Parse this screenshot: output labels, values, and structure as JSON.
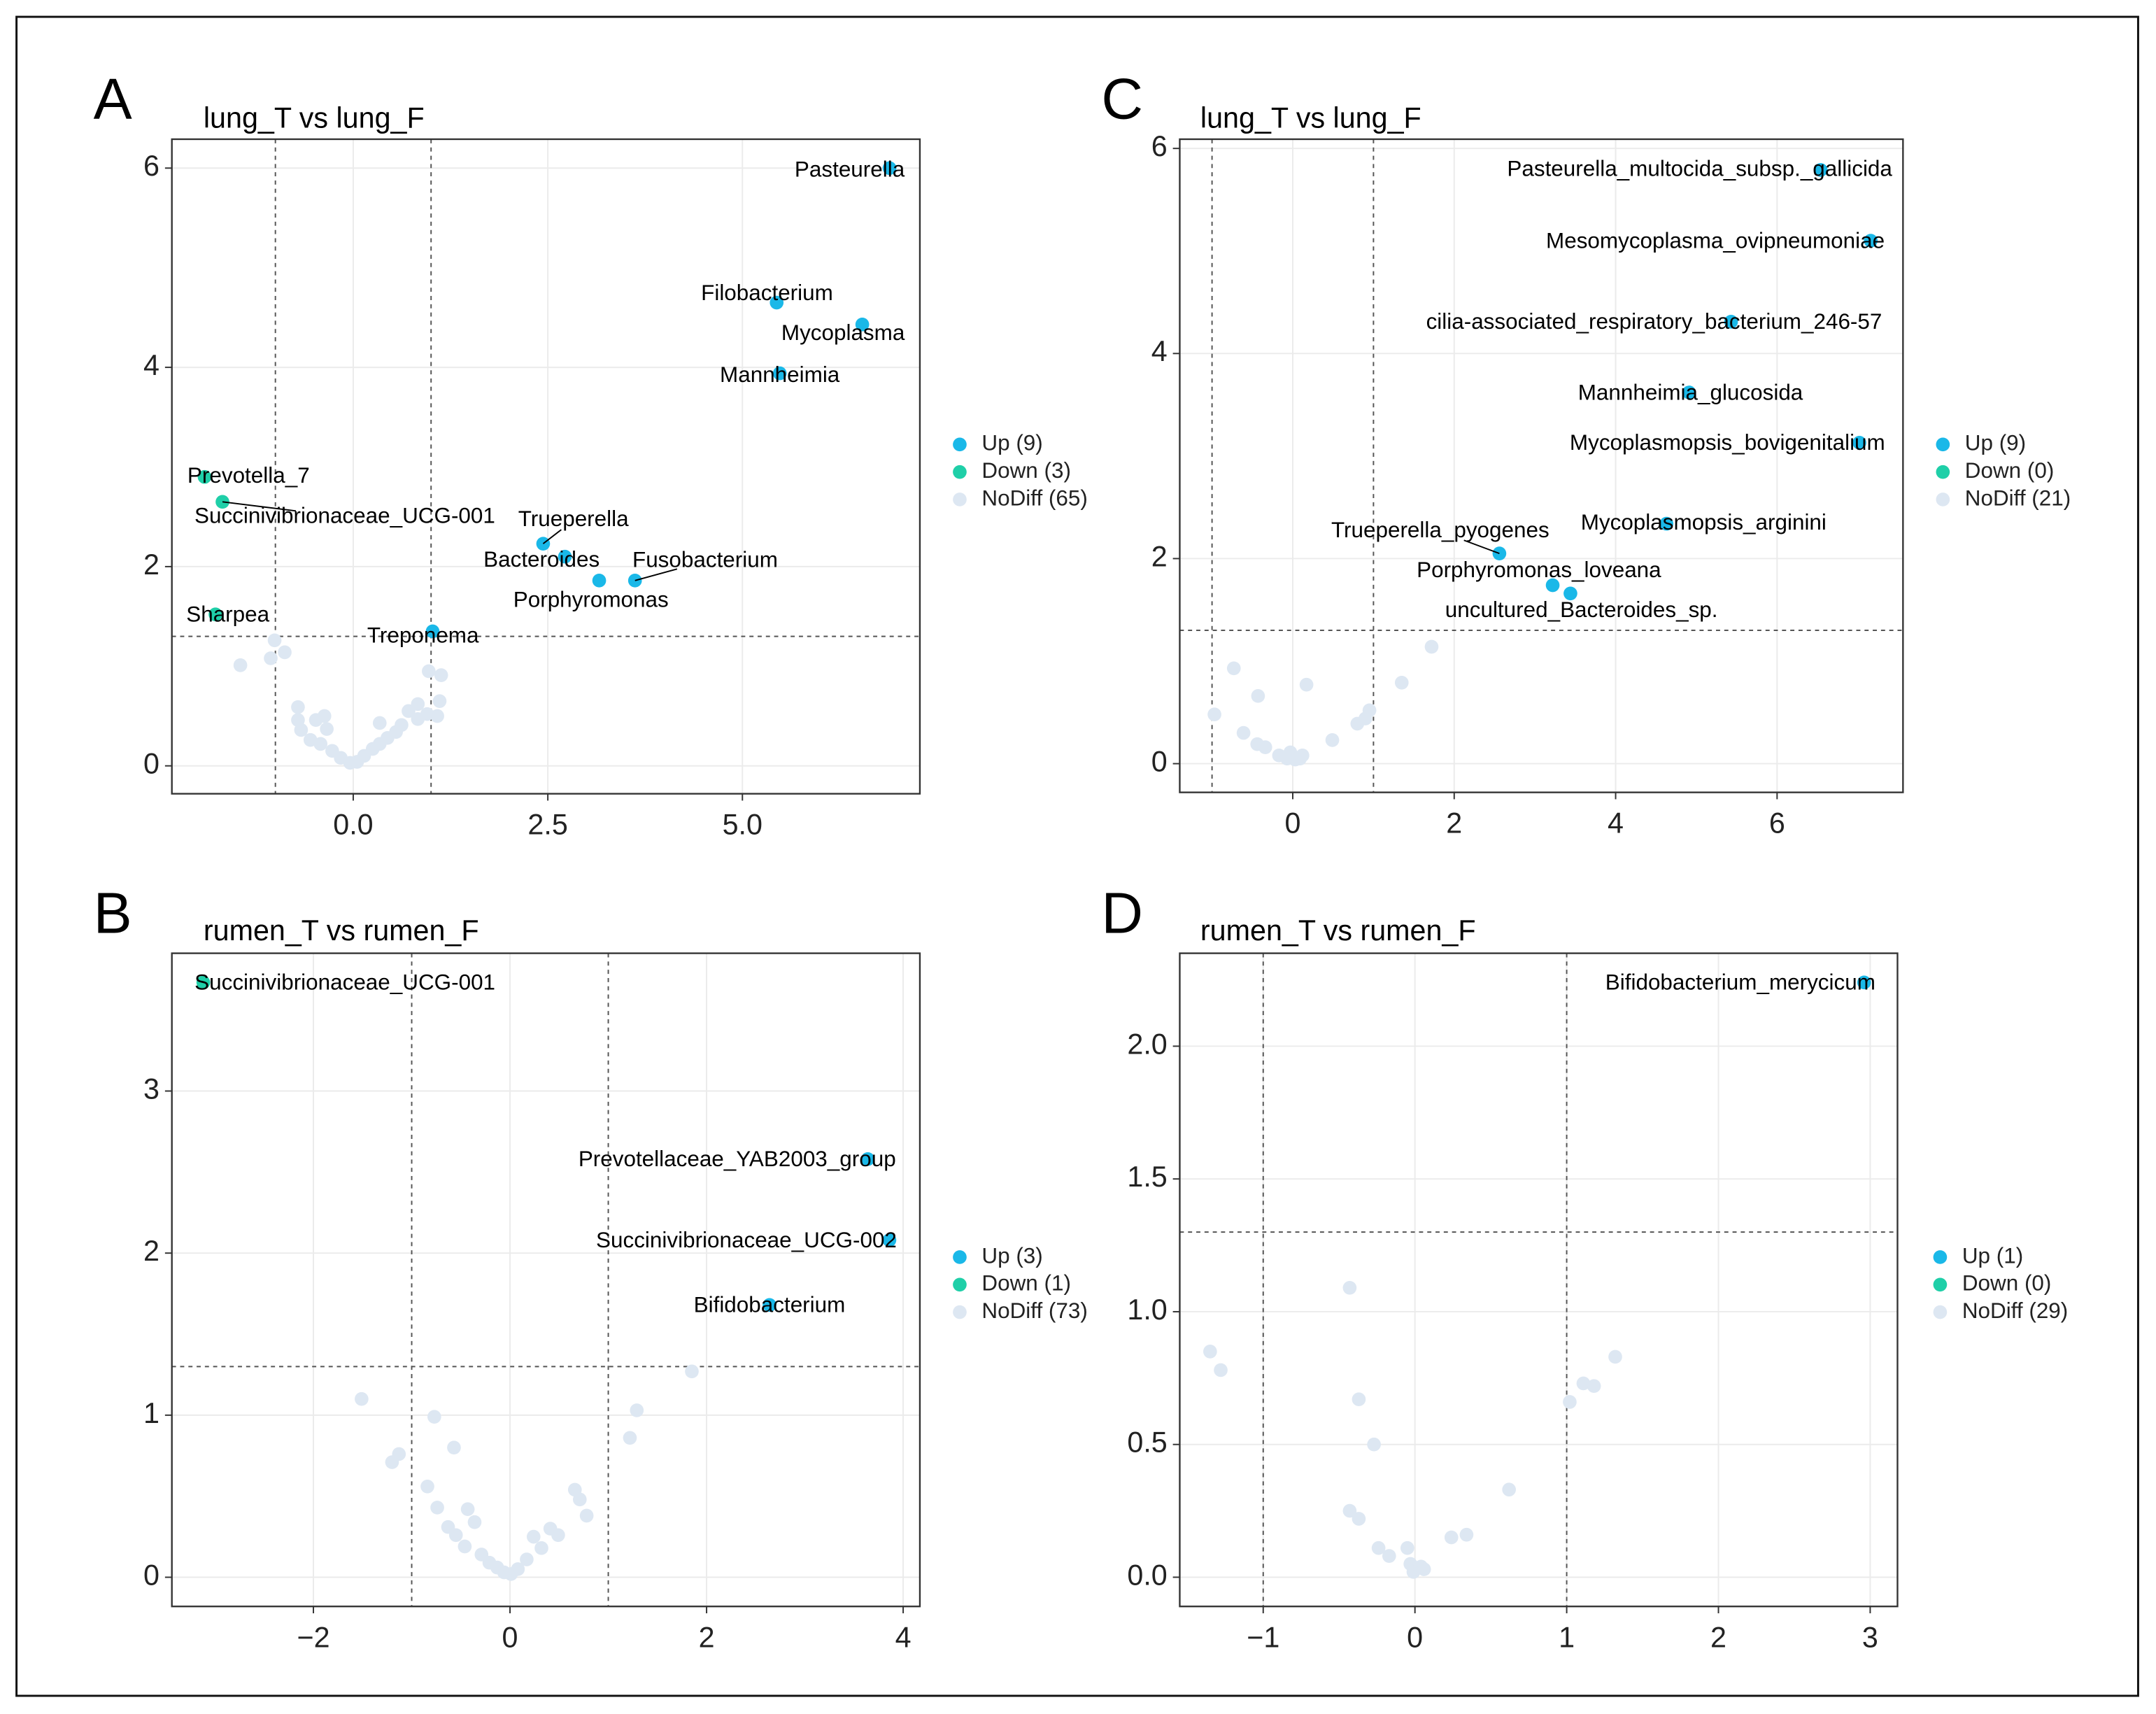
{
  "chart_data": [
    {
      "type": "scatter",
      "panel": "A",
      "title": "lung_T vs lung_F",
      "xlim": [
        -2.33,
        7.28
      ],
      "ylim": [
        -0.28,
        6.29
      ],
      "xticks": [
        {
          "value": 0,
          "label": "0.0"
        },
        2.5,
        {
          "value": 5,
          "label": "5.0"
        }
      ],
      "yticks": [
        0,
        2,
        4,
        6
      ],
      "grid": true,
      "thresholds": {
        "x": [
          -1,
          1
        ],
        "y": 1.3
      },
      "series": [
        {
          "name": "Up (9)",
          "color": "#1ab8e8",
          "x": [
            6.89,
            5.44,
            6.54,
            5.48,
            2.44,
            2.72,
            3.62,
            3.16,
            1.02
          ],
          "y": [
            6.0,
            4.65,
            4.43,
            3.94,
            2.23,
            2.1,
            1.86,
            1.86,
            1.35
          ],
          "labels": [
            "Pasteurella",
            "Filobacterium",
            "Mycoplasma",
            "Mannheimia",
            "Trueperella",
            "Bacteroides",
            "Fusobacterium",
            "Porphyromonas",
            "Treponema"
          ]
        },
        {
          "name": "Down (3)",
          "color": "#1fcfa8",
          "x": [
            -1.91,
            -1.68,
            -1.77
          ],
          "y": [
            2.9,
            2.65,
            1.52
          ],
          "labels": [
            "Prevotella_7",
            "Succinivibrionaceae_UCG-001",
            "Sharpea"
          ]
        },
        {
          "name": "NoDiff (65)",
          "color": "#dde7f2",
          "x": [
            -1.45,
            -1.06,
            -0.88,
            -1.01,
            -0.71,
            -0.71,
            -0.67,
            -0.48,
            -0.37,
            -0.34,
            -0.55,
            -0.42,
            -0.27,
            -0.16,
            -0.04,
            0.05,
            0.14,
            0.25,
            0.34,
            0.44,
            0.55,
            0.62,
            0.34,
            0.71,
            0.83,
            0.83,
            0.95,
            1.08,
            0.97,
            1.11,
            1.13
          ],
          "y": [
            1.01,
            1.08,
            1.14,
            1.26,
            0.59,
            0.46,
            0.36,
            0.46,
            0.5,
            0.37,
            0.26,
            0.22,
            0.15,
            0.08,
            0.03,
            0.04,
            0.1,
            0.17,
            0.22,
            0.28,
            0.34,
            0.41,
            0.43,
            0.55,
            0.47,
            0.62,
            0.52,
            0.5,
            0.95,
            0.65,
            0.91
          ]
        }
      ]
    },
    {
      "type": "scatter",
      "panel": "B",
      "title": "rumen_T vs rumen_F",
      "xlim": [
        -3.44,
        4.17
      ],
      "ylim": [
        -0.18,
        3.85
      ],
      "xticks": [
        {
          "value": -2,
          "label": "−2"
        },
        0,
        2,
        4
      ],
      "yticks": [
        0,
        1,
        2,
        3
      ],
      "grid": true,
      "thresholds": {
        "x": [
          -1,
          1
        ],
        "y": 1.3
      },
      "series": [
        {
          "name": "Up (3)",
          "color": "#1ab8e8",
          "x": [
            3.64,
            3.86,
            2.64
          ],
          "y": [
            2.58,
            2.08,
            1.68
          ],
          "labels": [
            "Prevotellaceae_YAB2003_group",
            "Succinivibrionaceae_UCG-002",
            "Bifidobacterium"
          ]
        },
        {
          "name": "Down (1)",
          "color": "#1fcfa8",
          "x": [
            -3.12
          ],
          "y": [
            3.67
          ],
          "labels": [
            "Succinivibrionaceae_UCG-001"
          ]
        },
        {
          "name": "NoDiff (73)",
          "color": "#dde7f2",
          "x": [
            -1.51,
            -1.2,
            -1.13,
            -0.77,
            -0.57,
            -0.84,
            -0.74,
            -0.63,
            -0.55,
            -0.43,
            -0.36,
            -0.46,
            -0.29,
            -0.21,
            -0.13,
            -0.06,
            0.01,
            0.08,
            0.17,
            0.24,
            0.32,
            0.41,
            0.49,
            0.66,
            0.71,
            0.78,
            1.22,
            1.29,
            1.85
          ],
          "y": [
            1.1,
            0.71,
            0.76,
            0.99,
            0.8,
            0.56,
            0.43,
            0.31,
            0.26,
            0.42,
            0.34,
            0.19,
            0.14,
            0.09,
            0.06,
            0.03,
            0.02,
            0.05,
            0.11,
            0.25,
            0.18,
            0.3,
            0.26,
            0.54,
            0.48,
            0.38,
            0.86,
            1.03,
            1.27
          ]
        }
      ]
    },
    {
      "type": "scatter",
      "panel": "C",
      "title": "lung_T vs lung_F",
      "xlim": [
        -1.4,
        7.56
      ],
      "ylim": [
        -0.28,
        6.09
      ],
      "xticks": [
        0,
        2,
        4,
        6
      ],
      "yticks": [
        0,
        2,
        4,
        6
      ],
      "grid": true,
      "thresholds": {
        "x": [
          -1,
          1
        ],
        "y": 1.3
      },
      "series": [
        {
          "name": "Up (9)",
          "color": "#1ab8e8",
          "x": [
            6.54,
            7.16,
            5.43,
            4.91,
            7.02,
            4.63,
            2.56,
            3.22,
            3.44
          ],
          "y": [
            5.79,
            5.1,
            4.31,
            3.62,
            3.13,
            2.34,
            2.05,
            1.74,
            1.66
          ],
          "labels": [
            "Pasteurella_multocida_subsp._gallicida",
            "Mesomycoplasma_ovipneumoniae",
            "cilia-associated_respiratory_bacterium_246-57",
            "Mannheimia_glucosida",
            "Mycoplasmopsis_bovigenitalium",
            "Mycoplasmopsis_arginini",
            "Trueperella_pyogenes",
            "Porphyromonas_loveana",
            "uncultured_Bacteroides_sp."
          ]
        },
        {
          "name": "Down (0)",
          "color": "#1fcfa8",
          "x": [],
          "y": [],
          "labels": []
        },
        {
          "name": "NoDiff (21)",
          "color": "#dde7f2",
          "x": [
            -0.97,
            -0.73,
            -0.61,
            -0.43,
            -0.44,
            -0.34,
            -0.17,
            -0.07,
            0.03,
            0.12,
            0.17,
            0.49,
            0.8,
            0.9,
            0.95,
            1.35,
            1.72,
            0.09,
            -0.03
          ],
          "y": [
            0.48,
            0.93,
            0.3,
            0.66,
            0.19,
            0.16,
            0.08,
            0.05,
            0.04,
            0.08,
            0.77,
            0.23,
            0.39,
            0.44,
            0.52,
            0.79,
            1.14,
            0.05,
            0.11
          ]
        }
      ]
    },
    {
      "type": "scatter",
      "panel": "D",
      "title": "rumen_T vs rumen_F",
      "xlim": [
        -1.55,
        3.18
      ],
      "ylim": [
        -0.11,
        2.35
      ],
      "xticks": [
        {
          "value": -1,
          "label": "−1"
        },
        0,
        1,
        2,
        3
      ],
      "yticks": [
        {
          "value": 0,
          "label": "0.0"
        },
        0.5,
        {
          "value": 1,
          "label": "1.0"
        },
        1.5,
        {
          "value": 2,
          "label": "2.0"
        }
      ],
      "grid": true,
      "thresholds": {
        "x": [
          -1,
          1
        ],
        "y": 1.3
      },
      "series": [
        {
          "name": "Up (1)",
          "color": "#1ab8e8",
          "x": [
            2.96
          ],
          "y": [
            2.24
          ],
          "labels": [
            "Bifidobacterium_merycicum"
          ]
        },
        {
          "name": "Down (0)",
          "color": "#1fcfa8",
          "x": [],
          "y": [],
          "labels": []
        },
        {
          "name": "NoDiff (29)",
          "color": "#dde7f2",
          "x": [
            -1.35,
            -1.28,
            -0.43,
            -0.37,
            -0.27,
            -0.43,
            -0.37,
            -0.24,
            -0.17,
            -0.05,
            -0.03,
            -0.01,
            0.04,
            0.06,
            0.24,
            0.34,
            0.62,
            1.02,
            1.11,
            1.18,
            1.32
          ],
          "y": [
            0.85,
            0.78,
            1.09,
            0.67,
            0.5,
            0.25,
            0.22,
            0.11,
            0.08,
            0.11,
            0.05,
            0.02,
            0.04,
            0.03,
            0.15,
            0.16,
            0.33,
            0.66,
            0.73,
            0.72,
            0.83
          ]
        }
      ]
    }
  ]
}
